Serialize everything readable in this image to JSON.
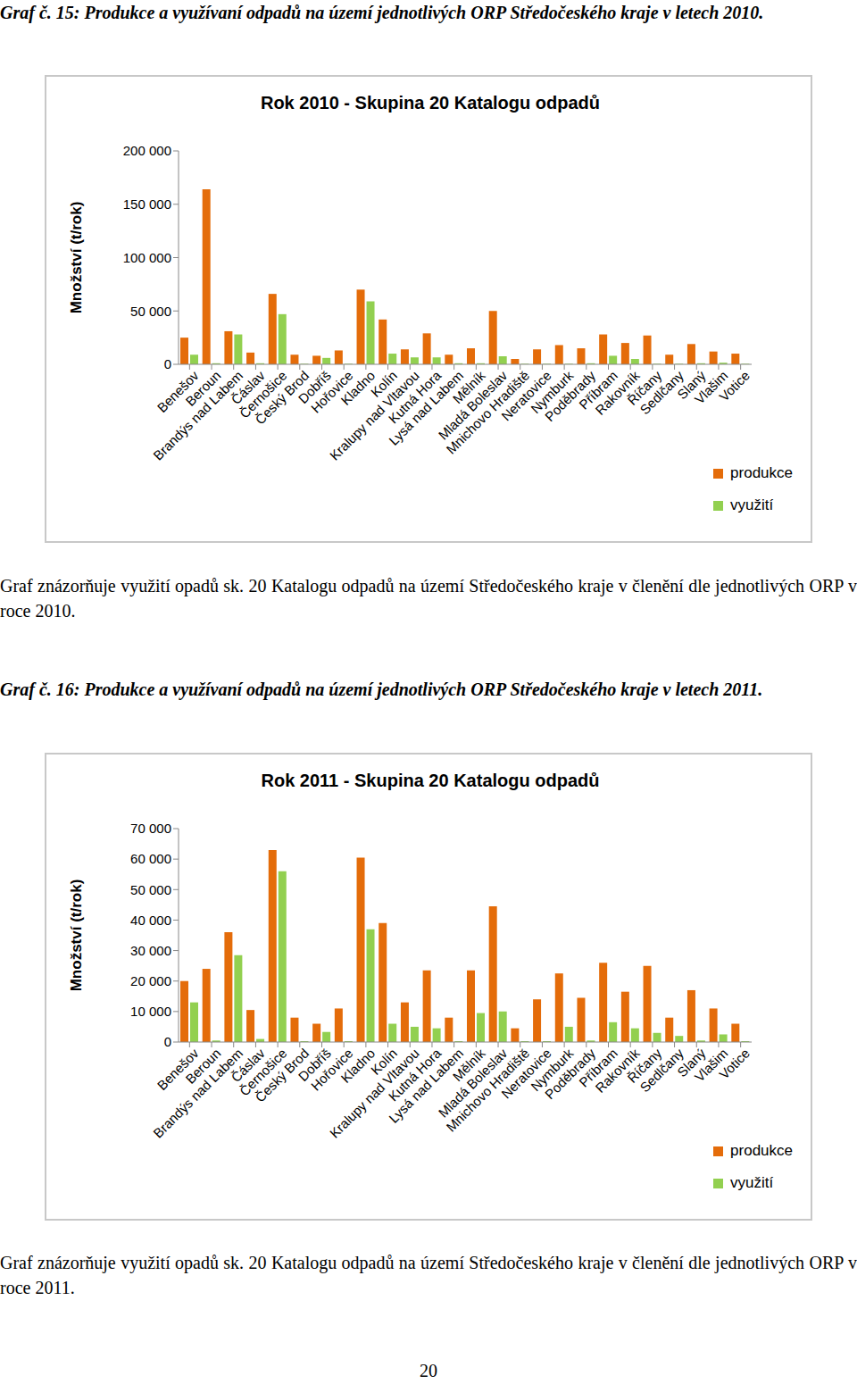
{
  "page_number": 20,
  "figures": [
    {
      "heading": "Graf č. 15: Produkce a využívaní odpadů na území jednotlivých ORP Středočeského kraje v letech 2010.",
      "caption": "Graf znázorňuje využití opadů sk. 20 Katalogu odpadů na území Středočeského kraje v členění dle jednotlivých ORP v roce 2010."
    },
    {
      "heading": "Graf č. 16: Produkce a využívaní odpadů na území jednotlivých ORP Středočeského kraje v letech 2011.",
      "caption": "Graf znázorňuje využití opadů sk. 20 Katalogu odpadů na území Středočeského kraje v členění dle jednotlivých ORP v roce 2011."
    }
  ],
  "chart_data": [
    {
      "type": "bar",
      "title": "Rok 2010 - Skupina 20 Katalogu odpadů",
      "y_label": "Množství (t/rok)",
      "categories": [
        "Benešov",
        "Beroun",
        "Brandýs nad Labem",
        "Čáslav",
        "Černošice",
        "Český Brod",
        "Dobříš",
        "Hořovice",
        "Kladno",
        "Kolín",
        "Kralupy nad Vltavou",
        "Kutná Hora",
        "Lysá nad Labem",
        "Mělník",
        "Mladá Boleslav",
        "Mnichovo Hradiště",
        "Neratovice",
        "Nymburk",
        "Poděbrady",
        "Příbram",
        "Rakovník",
        "Říčany",
        "Sedlčany",
        "Slaný",
        "Vlašim",
        "Votice"
      ],
      "series": [
        {
          "name": "produkce",
          "color": "#E46C0A",
          "values": [
            25000,
            164000,
            31000,
            11000,
            66000,
            9000,
            8000,
            13000,
            70000,
            42000,
            14000,
            29000,
            9000,
            15000,
            50000,
            5000,
            14000,
            18000,
            15000,
            28000,
            20000,
            27000,
            9000,
            19000,
            12000,
            10000
          ]
        },
        {
          "name": "využití",
          "color": "#92D050",
          "values": [
            9000,
            1000,
            28000,
            1000,
            47000,
            500,
            6000,
            500,
            59000,
            10000,
            6500,
            6500,
            1000,
            1000,
            7500,
            500,
            500,
            500,
            1000,
            8000,
            5000,
            500,
            500,
            1000,
            1500,
            500
          ]
        }
      ],
      "ylim": [
        0,
        200000
      ],
      "yticks": [
        0,
        {
          "value": 50000,
          "label": "50 000"
        },
        {
          "value": 100000,
          "label": "100 000"
        },
        {
          "value": 150000,
          "label": "150 000"
        },
        {
          "value": 200000,
          "label": "200 000"
        }
      ],
      "grid": false,
      "legend": "bottom-right"
    },
    {
      "type": "bar",
      "title": "Rok 2011 - Skupina 20 Katalogu odpadů",
      "y_label": "Množství (t/rok)",
      "categories": [
        "Benešov",
        "Beroun",
        "Brandýs nad Labem",
        "Čáslav",
        "Černošice",
        "Český Brod",
        "Dobříš",
        "Hořovice",
        "Kladno",
        "Kolín",
        "Kralupy nad Vltavou",
        "Kutná Hora",
        "Lysá nad Labem",
        "Mělník",
        "Mladá Boleslav",
        "Mnichovo Hradiště",
        "Neratovice",
        "Nymburk",
        "Poděbrady",
        "Příbram",
        "Rakovník",
        "Říčany",
        "Sedlčany",
        "Slaný",
        "Vlašim",
        "Votice"
      ],
      "series": [
        {
          "name": "produkce",
          "color": "#E46C0A",
          "values": [
            20000,
            24000,
            36000,
            10500,
            63000,
            8000,
            6000,
            11000,
            60500,
            39000,
            13000,
            23500,
            8000,
            23500,
            44500,
            4500,
            14000,
            22500,
            14500,
            26000,
            16500,
            25000,
            8000,
            17000,
            11000,
            6000
          ]
        },
        {
          "name": "využití",
          "color": "#92D050",
          "values": [
            13000,
            500,
            28500,
            1000,
            56000,
            300,
            3300,
            300,
            37000,
            6000,
            5000,
            4500,
            300,
            9500,
            10000,
            300,
            300,
            5000,
            500,
            6500,
            4500,
            3000,
            2000,
            500,
            2500,
            300
          ]
        }
      ],
      "ylim": [
        0,
        70000
      ],
      "yticks": [
        0,
        {
          "value": 10000,
          "label": "10 000"
        },
        {
          "value": 20000,
          "label": "20 000"
        },
        {
          "value": 30000,
          "label": "30 000"
        },
        {
          "value": 40000,
          "label": "40 000"
        },
        {
          "value": 50000,
          "label": "50 000"
        },
        {
          "value": 60000,
          "label": "60 000"
        },
        {
          "value": 70000,
          "label": "70 000"
        }
      ],
      "grid": false,
      "legend": "bottom-right"
    }
  ]
}
